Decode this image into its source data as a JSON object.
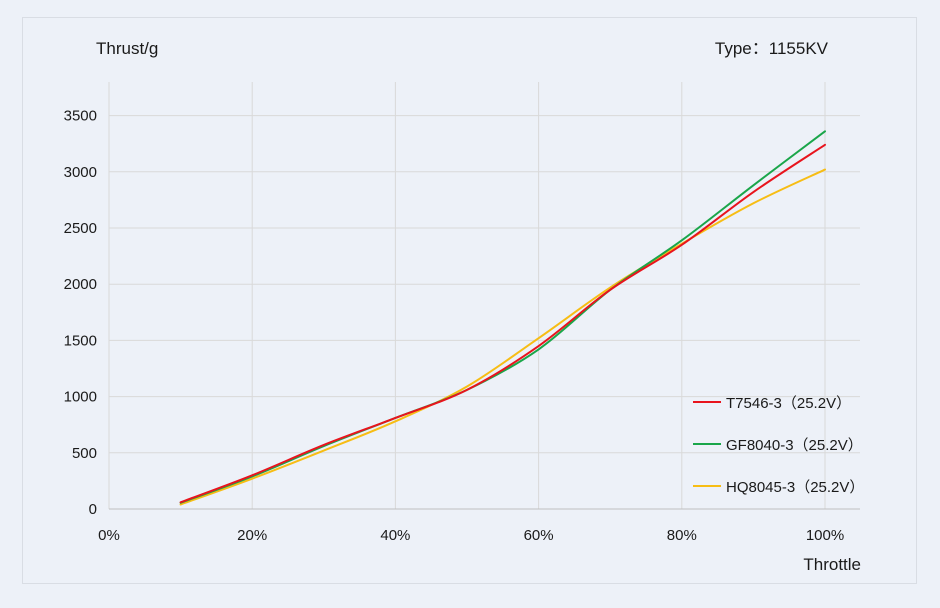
{
  "chart_data": {
    "type": "line",
    "title": "Type：1155KV",
    "ylabel": "Thrust/g",
    "xlabel": "Throttle",
    "xlim": [
      0,
      100
    ],
    "ylim": [
      0,
      3800
    ],
    "x_ticks": [
      0,
      20,
      40,
      60,
      80,
      100
    ],
    "x_tick_labels": [
      "0%",
      "20%",
      "40%",
      "60%",
      "80%",
      "100%"
    ],
    "y_ticks": [
      0,
      500,
      1000,
      1500,
      2000,
      2500,
      3000,
      3500
    ],
    "y_tick_labels": [
      "0",
      "500",
      "1000",
      "1500",
      "2000",
      "2500",
      "3000",
      "3500"
    ],
    "grid": true,
    "legend_position": "bottom-right",
    "series": [
      {
        "name": "T7546-3（25.2V）",
        "color": "#e8141d",
        "x": [
          10,
          20,
          30,
          40,
          50,
          60,
          70,
          80,
          90,
          100
        ],
        "y": [
          60,
          300,
          570,
          810,
          1060,
          1450,
          1950,
          2350,
          2820,
          3240
        ]
      },
      {
        "name": "GF8040-3（25.2V）",
        "color": "#1aa64a",
        "x": [
          10,
          20,
          30,
          40,
          50,
          60,
          70,
          80,
          90,
          100
        ],
        "y": [
          55,
          290,
          560,
          810,
          1060,
          1420,
          1950,
          2390,
          2880,
          3360
        ]
      },
      {
        "name": "HQ8045-3（25.2V）",
        "color": "#f7bd14",
        "x": [
          10,
          20,
          30,
          40,
          50,
          60,
          70,
          80,
          90,
          100
        ],
        "y": [
          40,
          270,
          520,
          780,
          1090,
          1520,
          1970,
          2360,
          2720,
          3020
        ]
      }
    ]
  }
}
